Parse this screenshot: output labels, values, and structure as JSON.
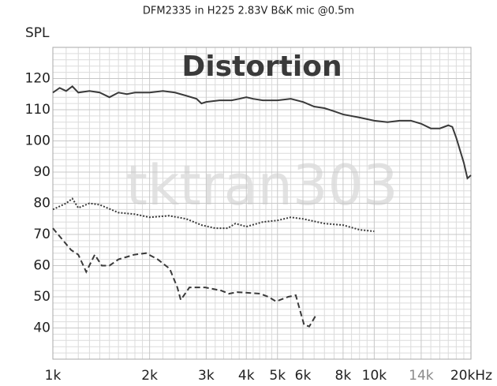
{
  "chart_data": {
    "type": "line",
    "title": "DFM2335 in H225 2.83V B&K mic @0.5m",
    "y_label": "SPL",
    "annotation": "Distortion",
    "watermark": "tktran303",
    "log_x": true,
    "grid": true,
    "xlim": [
      1000,
      20000
    ],
    "ylim": [
      30,
      130
    ],
    "xticks": [
      {
        "value": 1000,
        "label": "1k"
      },
      {
        "value": 2000,
        "label": "2k"
      },
      {
        "value": 3000,
        "label": "3k"
      },
      {
        "value": 4000,
        "label": "4k"
      },
      {
        "value": 5000,
        "label": "5k"
      },
      {
        "value": 6000,
        "label": "6k"
      },
      {
        "value": 8000,
        "label": "8k"
      },
      {
        "value": 10000,
        "label": "10k"
      },
      {
        "value": 14000,
        "label": "14k",
        "color": "#8a8a8a"
      },
      {
        "value": 20000,
        "label": "20kHz"
      }
    ],
    "yticks": [
      40,
      50,
      60,
      70,
      80,
      90,
      100,
      110,
      120
    ],
    "xgrid": [
      1100,
      1200,
      1300,
      1400,
      1500,
      1600,
      1700,
      1800,
      1900,
      2200,
      2400,
      2600,
      2800,
      3200,
      3400,
      3600,
      3800,
      4200,
      4400,
      4600,
      4800,
      5500,
      6500,
      7000,
      7500,
      8500,
      9000,
      9500,
      11000,
      12000,
      13000,
      15000,
      16000,
      17000,
      18000,
      19000
    ],
    "ygrid": [
      32,
      34,
      36,
      38,
      42,
      44,
      46,
      48,
      52,
      54,
      56,
      58,
      62,
      64,
      66,
      68,
      72,
      74,
      76,
      78,
      82,
      84,
      86,
      88,
      92,
      94,
      96,
      98,
      102,
      104,
      106,
      108,
      112,
      114,
      116,
      118,
      122,
      124,
      126,
      128
    ],
    "series": [
      {
        "color": "#3a3a3a",
        "dash": "solid",
        "x": [
          1000,
          1050,
          1100,
          1150,
          1200,
          1300,
          1400,
          1500,
          1600,
          1700,
          1800,
          2000,
          2200,
          2400,
          2600,
          2800,
          2900,
          3000,
          3300,
          3600,
          3800,
          4000,
          4200,
          4500,
          5000,
          5500,
          6000,
          6500,
          7000,
          7500,
          8000,
          9000,
          10000,
          11000,
          12000,
          13000,
          14000,
          15000,
          16000,
          17000,
          17500,
          18000,
          19000,
          19500,
          20000
        ],
        "values": [
          115.5,
          117,
          116,
          117.5,
          115.5,
          116,
          115.5,
          114,
          115.5,
          115,
          115.5,
          115.5,
          116,
          115.5,
          114.5,
          113.5,
          112,
          112.5,
          113,
          113,
          113.5,
          114,
          113.5,
          113,
          113,
          113.5,
          112.5,
          111,
          110.5,
          109.5,
          108.5,
          107.5,
          106.5,
          106,
          106.5,
          106.5,
          105.5,
          104,
          104,
          105,
          104.5,
          101,
          93,
          88,
          89
        ]
      },
      {
        "color": "#3a3a3a",
        "dash": "dotted",
        "x": [
          1000,
          1100,
          1150,
          1200,
          1300,
          1400,
          1600,
          1800,
          2000,
          2300,
          2600,
          2900,
          3200,
          3500,
          3700,
          4000,
          4500,
          5000,
          5500,
          6000,
          7000,
          8000,
          9000,
          10000
        ],
        "values": [
          78,
          80,
          81.5,
          78.5,
          80,
          79.5,
          77,
          76.5,
          75.5,
          76,
          75,
          73,
          72,
          72,
          73.5,
          72.5,
          74,
          74.5,
          75.5,
          75,
          73.5,
          73,
          71.5,
          71
        ]
      },
      {
        "color": "#3a3a3a",
        "dash": "dashed",
        "x": [
          1000,
          1140,
          1200,
          1270,
          1350,
          1420,
          1500,
          1600,
          1790,
          1950,
          2120,
          2310,
          2440,
          2500,
          2660,
          2980,
          3340,
          3530,
          3740,
          4420,
          4680,
          4950,
          5400,
          5700,
          6050,
          6280,
          6580
        ],
        "values": [
          72,
          65,
          63.5,
          58,
          63.5,
          60,
          60,
          62,
          63.5,
          64,
          62,
          59,
          53,
          49,
          53,
          53,
          52,
          51,
          51.5,
          51,
          50,
          48.5,
          50,
          50.5,
          41,
          40.5,
          44
        ]
      }
    ]
  }
}
